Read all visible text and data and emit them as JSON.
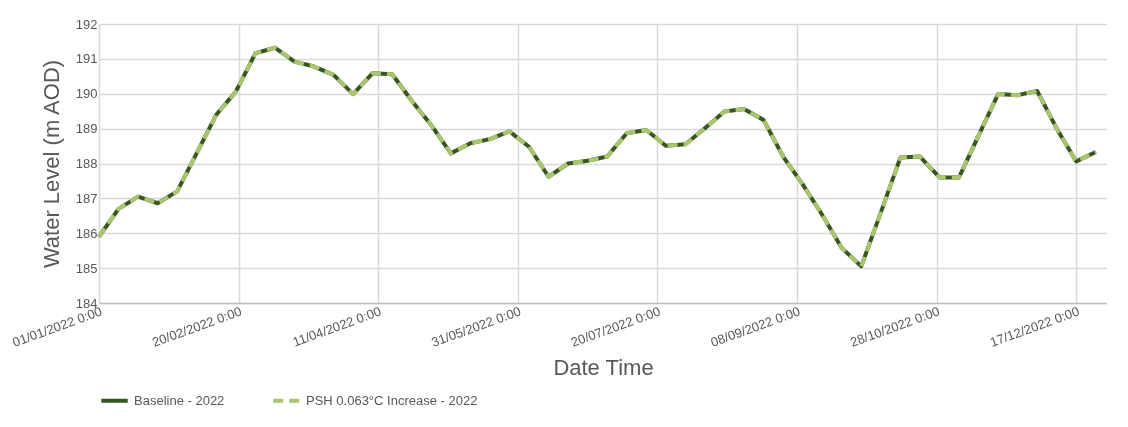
{
  "chart_data": {
    "type": "line",
    "xlabel": "Date Time",
    "ylabel": "Water Level (m AOD)",
    "x": [
      "2022-01-01",
      "2022-01-08",
      "2022-01-15",
      "2022-01-22",
      "2022-01-29",
      "2022-02-05",
      "2022-02-12",
      "2022-02-19",
      "2022-02-26",
      "2022-03-05",
      "2022-03-12",
      "2022-03-19",
      "2022-03-26",
      "2022-04-02",
      "2022-04-09",
      "2022-04-16",
      "2022-04-23",
      "2022-04-30",
      "2022-05-07",
      "2022-05-14",
      "2022-05-21",
      "2022-05-28",
      "2022-06-04",
      "2022-06-11",
      "2022-06-18",
      "2022-06-25",
      "2022-07-02",
      "2022-07-09",
      "2022-07-16",
      "2022-07-23",
      "2022-07-30",
      "2022-08-06",
      "2022-08-13",
      "2022-08-20",
      "2022-08-27",
      "2022-09-03",
      "2022-09-10",
      "2022-09-17",
      "2022-09-24",
      "2022-10-01",
      "2022-10-08",
      "2022-10-15",
      "2022-10-22",
      "2022-10-29",
      "2022-11-05",
      "2022-11-12",
      "2022-11-19",
      "2022-11-26",
      "2022-12-03",
      "2022-12-10",
      "2022-12-17",
      "2022-12-24"
    ],
    "series": [
      {
        "name": "Baseline - 2022",
        "color": "#375623",
        "line_style": "solid",
        "values": [
          185.9,
          186.7,
          187.05,
          186.86,
          187.2,
          188.3,
          189.4,
          190.06,
          191.16,
          191.32,
          190.92,
          190.78,
          190.54,
          189.99,
          190.59,
          190.56,
          189.8,
          189.1,
          188.29,
          188.58,
          188.7,
          188.92,
          188.48,
          187.62,
          188.0,
          188.08,
          188.2,
          188.87,
          188.96,
          188.51,
          188.55,
          189.01,
          189.49,
          189.56,
          189.25,
          188.2,
          187.4,
          186.53,
          185.58,
          185.05,
          186.6,
          188.17,
          188.2,
          187.6,
          187.6,
          188.8,
          189.99,
          189.96,
          190.08,
          189.0,
          188.06,
          188.33
        ]
      },
      {
        "name": "PSH 0.063°C Increase - 2022",
        "color": "#a9c66f",
        "line_style": "dashed",
        "values": [
          185.9,
          186.7,
          187.05,
          186.86,
          187.2,
          188.3,
          189.4,
          190.06,
          191.16,
          191.32,
          190.92,
          190.78,
          190.54,
          189.99,
          190.59,
          190.56,
          189.8,
          189.1,
          188.29,
          188.58,
          188.7,
          188.92,
          188.48,
          187.62,
          188.0,
          188.08,
          188.2,
          188.87,
          188.96,
          188.51,
          188.55,
          189.01,
          189.49,
          189.56,
          189.25,
          188.2,
          187.4,
          186.53,
          185.58,
          185.05,
          186.6,
          188.17,
          188.2,
          187.6,
          187.6,
          188.8,
          189.99,
          189.96,
          190.08,
          189.0,
          188.06,
          188.33
        ]
      }
    ],
    "xlim": [
      "2022-01-01",
      "2022-12-28"
    ],
    "xticks": [
      {
        "value": "2022-01-01",
        "label": "01/01/2022 0:00"
      },
      {
        "value": "2022-02-20",
        "label": "20/02/2022 0:00"
      },
      {
        "value": "2022-04-11",
        "label": "11/04/2022 0:00"
      },
      {
        "value": "2022-05-31",
        "label": "31/05/2022 0:00"
      },
      {
        "value": "2022-07-20",
        "label": "20/07/2022 0:00"
      },
      {
        "value": "2022-09-08",
        "label": "08/09/2022 0:00"
      },
      {
        "value": "2022-10-28",
        "label": "28/10/2022 0:00"
      },
      {
        "value": "2022-12-17",
        "label": "17/12/2022 0:00"
      }
    ],
    "ylim": [
      184,
      192
    ],
    "yticks": [
      184,
      185,
      186,
      187,
      188,
      189,
      190,
      191,
      192
    ],
    "grid": true,
    "legend": "bottom"
  }
}
